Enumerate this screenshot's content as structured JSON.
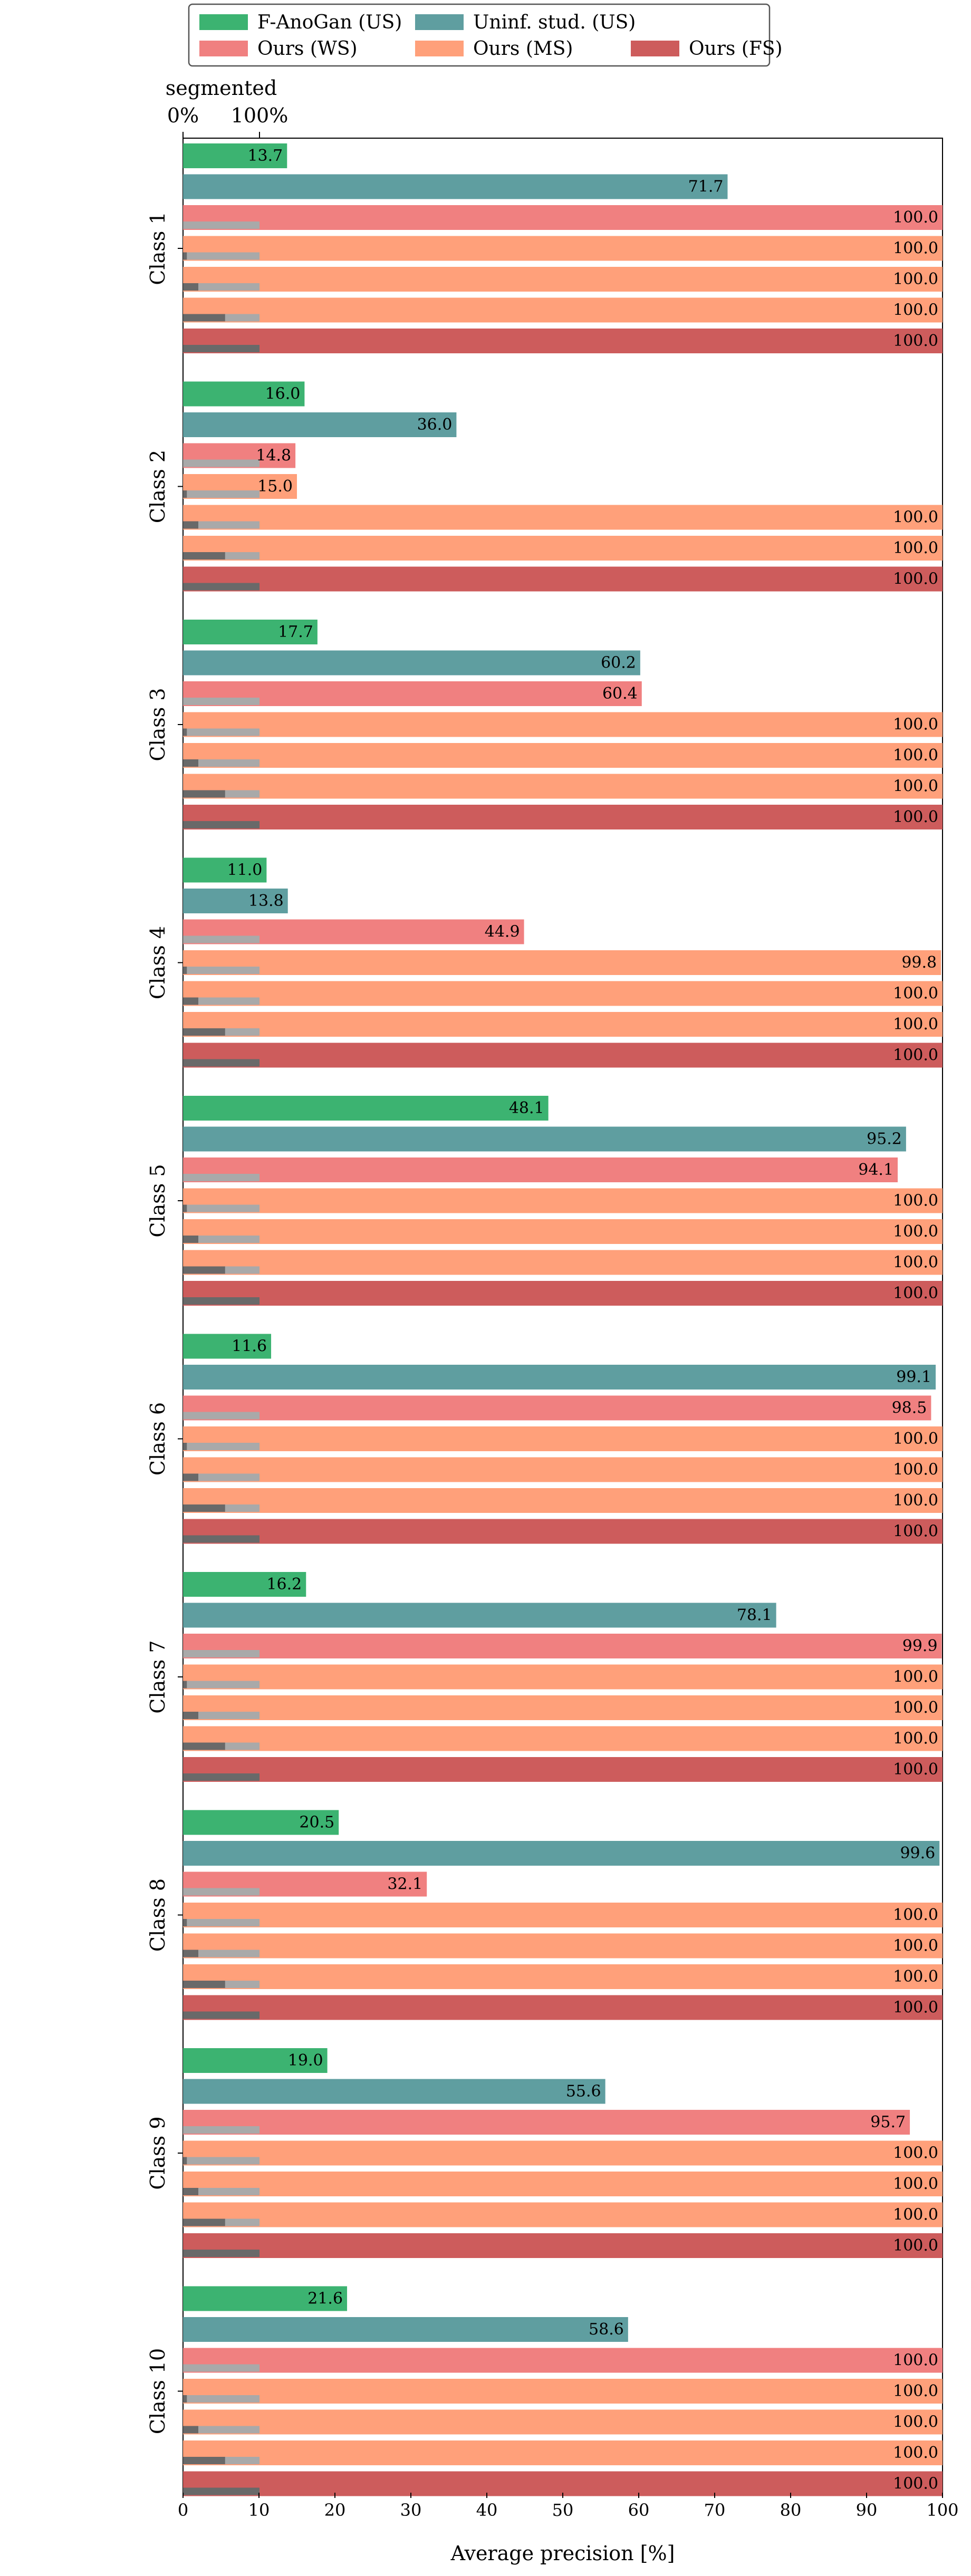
{
  "chart_data": {
    "type": "bar",
    "orientation": "horizontal",
    "title": "",
    "xlabel": "Average precision [%]",
    "ylabel": "",
    "xlim": [
      0,
      100
    ],
    "xticks": [
      0,
      10,
      20,
      30,
      40,
      50,
      60,
      70,
      80,
      90,
      100
    ],
    "grid": false,
    "legend": {
      "placement": "top",
      "entries": [
        {
          "name": "F-AnoGan (US)",
          "color": "#3cb371"
        },
        {
          "name": "Uninf. stud. (US)",
          "color": "#5f9ea0"
        },
        {
          "name": "Ours (WS)",
          "color": "#f08080"
        },
        {
          "name": "Ours (MS)",
          "color": "#ffa07a"
        },
        {
          "name": "Ours (FS)",
          "color": "#cd5c5c"
        }
      ]
    },
    "segmented_axis": {
      "title": "segmented",
      "tick_labels": [
        "0%",
        "100%"
      ],
      "range": [
        0,
        100
      ],
      "colors": {
        "track": "#a9a9a9",
        "fill": "#696969"
      }
    },
    "series_order": [
      "F-AnoGan (US)",
      "Uninf. stud. (US)",
      "Ours (WS)",
      "Ours (MS)",
      "Ours (MS)",
      "Ours (MS)",
      "Ours (FS)"
    ],
    "segmented_percent": [
      0,
      5,
      20,
      55,
      100
    ],
    "classes": [
      {
        "label": "Class 1",
        "values": [
          13.7,
          71.7,
          100.0,
          100.0,
          100.0,
          100.0,
          100.0
        ],
        "value_labels": [
          "13.7",
          "71.7",
          "100.0",
          "100.0",
          "100.0",
          "100.0",
          "100.0"
        ]
      },
      {
        "label": "Class 2",
        "values": [
          16.0,
          36.0,
          14.8,
          15.0,
          100.0,
          100.0,
          100.0
        ],
        "value_labels": [
          "16.0",
          "36.0",
          "14.8",
          "15.0",
          "100.0",
          "100.0",
          "100.0"
        ]
      },
      {
        "label": "Class 3",
        "values": [
          17.7,
          60.2,
          60.4,
          100.0,
          100.0,
          100.0,
          100.0
        ],
        "value_labels": [
          "17.7",
          "60.2",
          "60.4",
          "100.0",
          "100.0",
          "100.0",
          "100.0"
        ]
      },
      {
        "label": "Class 4",
        "values": [
          11.0,
          13.8,
          44.9,
          99.8,
          100.0,
          100.0,
          100.0
        ],
        "value_labels": [
          "11.0",
          "13.8",
          "44.9",
          "99.8",
          "100.0",
          "100.0",
          "100.0"
        ]
      },
      {
        "label": "Class 5",
        "values": [
          48.1,
          95.2,
          94.1,
          100.0,
          100.0,
          100.0,
          100.0
        ],
        "value_labels": [
          "48.1",
          "95.2",
          "94.1",
          "100.0",
          "100.0",
          "100.0",
          "100.0"
        ]
      },
      {
        "label": "Class 6",
        "values": [
          11.6,
          99.1,
          98.5,
          100.0,
          100.0,
          100.0,
          100.0
        ],
        "value_labels": [
          "11.6",
          "99.1",
          "98.5",
          "100.0",
          "100.0",
          "100.0",
          "100.0"
        ]
      },
      {
        "label": "Class 7",
        "values": [
          16.2,
          78.1,
          99.9,
          100.0,
          100.0,
          100.0,
          100.0
        ],
        "value_labels": [
          "16.2",
          "78.1",
          "99.9",
          "100.0",
          "100.0",
          "100.0",
          "100.0"
        ]
      },
      {
        "label": "Class 8",
        "values": [
          20.5,
          99.6,
          32.1,
          100.0,
          100.0,
          100.0,
          100.0
        ],
        "value_labels": [
          "20.5",
          "99.6",
          "32.1",
          "100.0",
          "100.0",
          "100.0",
          "100.0"
        ]
      },
      {
        "label": "Class 9",
        "values": [
          19.0,
          55.6,
          95.7,
          100.0,
          100.0,
          100.0,
          100.0
        ],
        "value_labels": [
          "19.0",
          "55.6",
          "95.7",
          "100.0",
          "100.0",
          "100.0",
          "100.0"
        ]
      },
      {
        "label": "Class 10",
        "values": [
          21.6,
          58.6,
          100.0,
          100.0,
          100.0,
          100.0,
          100.0
        ],
        "value_labels": [
          "21.6",
          "58.6",
          "100.0",
          "100.0",
          "100.0",
          "100.0",
          "100.0"
        ]
      }
    ]
  }
}
